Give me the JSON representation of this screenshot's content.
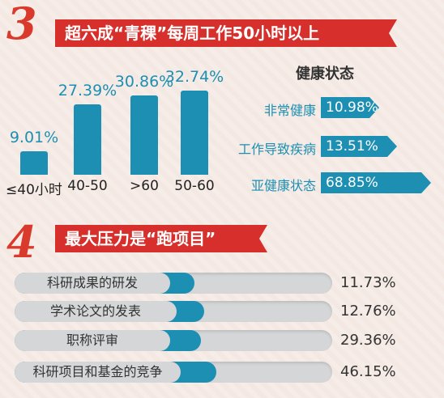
{
  "section3": {
    "number": "3",
    "title": "超六成“青稞”每周工作50小时以上"
  },
  "section4": {
    "number": "4",
    "title": "最大压力是“跑项目”"
  },
  "colors": {
    "accent": "#d7302c",
    "bar": "#1d8fb2",
    "track": "#d5d6d7"
  },
  "chart_data": [
    {
      "type": "bar",
      "title": "",
      "categories": [
        "≤40小时",
        "40-50",
        ">60",
        "50-60"
      ],
      "values": [
        9.01,
        27.39,
        30.86,
        32.74
      ],
      "value_labels": [
        "9.01%",
        "27.39%",
        "30.86%",
        "32.74%"
      ],
      "ylim": [
        0,
        35
      ]
    },
    {
      "type": "bar",
      "orientation": "horizontal",
      "title": "健康状态",
      "categories": [
        "非常健康",
        "工作导致疾病",
        "亚健康状态"
      ],
      "values": [
        10.98,
        13.51,
        68.85
      ],
      "value_labels": [
        "10.98%",
        "13.51%",
        "68.85%"
      ]
    },
    {
      "type": "bar",
      "orientation": "horizontal",
      "title": "",
      "categories": [
        "科研成果的研发",
        "学术论文的发表",
        "职称评审",
        "科研项目和基金的竞争"
      ],
      "values": [
        11.73,
        12.76,
        29.36,
        46.15
      ],
      "value_labels": [
        "11.73%",
        "12.76%",
        "29.36%",
        "46.15%"
      ]
    }
  ]
}
